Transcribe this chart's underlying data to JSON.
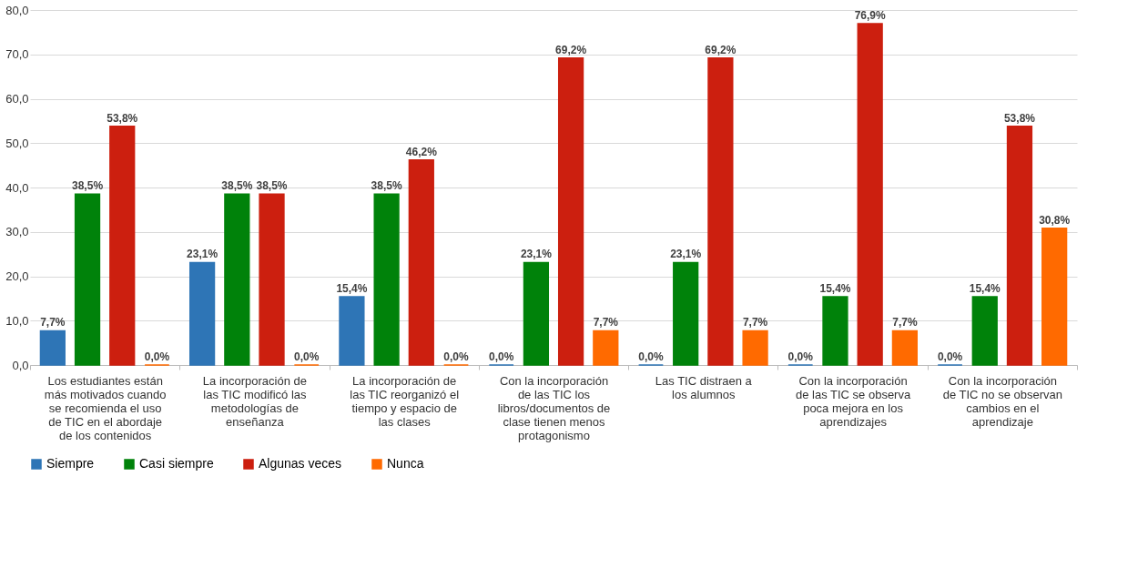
{
  "chart_data": {
    "type": "bar",
    "categories": [
      "Los estudiantes están más motivados cuando se recomienda el uso de TIC en el abordaje de los contenidos",
      "La incorporación de las TIC modificó las metodologías de enseñanza",
      "La incorporación de las TIC reorganizó el tiempo y espacio de las clases",
      "Con la incorporación de las TIC los libros/documentos de clase tienen menos protagonismo",
      "Las TIC distraen a los alumnos",
      "Con la incorporación de las TIC se observa poca mejora en los aprendizajes",
      "Con la incorporación de TIC no se observan cambios en el aprendizaje"
    ],
    "series": [
      {
        "name": "Siempre",
        "color": "#2e75b6",
        "values": [
          7.7,
          23.1,
          15.4,
          0.0,
          0.0,
          0.0,
          0.0
        ],
        "value_labels": [
          "7,7%",
          "23,1%",
          "15,4%",
          "0,0%",
          "0,0%",
          "0,0%",
          "0,0%"
        ]
      },
      {
        "name": "Casi siempre",
        "color": "#00820a",
        "values": [
          38.5,
          38.5,
          38.5,
          23.1,
          23.1,
          15.4,
          15.4
        ],
        "value_labels": [
          "38,5%",
          "38,5%",
          "38,5%",
          "23,1%",
          "23,1%",
          "15,4%",
          "15,4%"
        ]
      },
      {
        "name": "Algunas veces",
        "color": "#cc1f0f",
        "values": [
          53.8,
          38.5,
          46.2,
          69.2,
          69.2,
          76.9,
          53.8
        ],
        "value_labels": [
          "53,8%",
          "38,5%",
          "46,2%",
          "69,2%",
          "69,2%",
          "76,9%",
          "53,8%"
        ]
      },
      {
        "name": "Nunca",
        "color": "#ff6a00",
        "values": [
          0.0,
          0.0,
          0.0,
          7.7,
          7.7,
          7.7,
          30.8
        ],
        "value_labels": [
          "0,0%",
          "0,0%",
          "0,0%",
          "7,7%",
          "7,7%",
          "7,7%",
          "30,8%"
        ]
      }
    ],
    "ylim": [
      0,
      80
    ],
    "yticks": [
      {
        "value": 0,
        "label": "0,0"
      },
      {
        "value": 10,
        "label": "10,0"
      },
      {
        "value": 20,
        "label": "20,0"
      },
      {
        "value": 30,
        "label": "30,0"
      },
      {
        "value": 40,
        "label": "40,0"
      },
      {
        "value": 50,
        "label": "50,0"
      },
      {
        "value": 60,
        "label": "60,0"
      },
      {
        "value": 70,
        "label": "70,0"
      },
      {
        "value": 80,
        "label": "80,0"
      }
    ],
    "grid": "y",
    "legend": "bottom"
  }
}
